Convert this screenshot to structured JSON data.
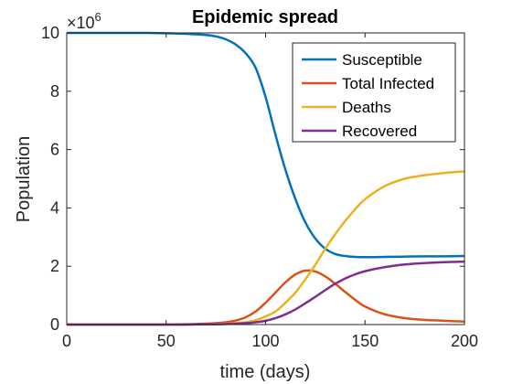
{
  "chart_data": {
    "type": "line",
    "title": "Epidemic spread",
    "xlabel": "time (days)",
    "ylabel": "Population",
    "xlim": [
      0,
      200
    ],
    "ylim": [
      0,
      10
    ],
    "xticks": [
      0,
      50,
      100,
      150,
      200
    ],
    "yticks": [
      0,
      2,
      4,
      6,
      8,
      10
    ],
    "y_exponent_label": "×10",
    "y_exponent_power": "6",
    "grid": false,
    "legend_position": "top-right",
    "x": [
      0,
      10,
      20,
      30,
      40,
      50,
      60,
      70,
      75,
      80,
      85,
      90,
      95,
      100,
      105,
      110,
      115,
      120,
      125,
      130,
      135,
      140,
      145,
      150,
      160,
      170,
      180,
      190,
      200
    ],
    "series": [
      {
        "name": "Susceptible",
        "color": "#0072BD",
        "values": [
          10.0,
          10.0,
          10.0,
          10.0,
          10.0,
          9.99,
          9.97,
          9.93,
          9.88,
          9.78,
          9.6,
          9.3,
          8.8,
          7.8,
          6.5,
          5.3,
          4.3,
          3.5,
          2.95,
          2.6,
          2.42,
          2.35,
          2.32,
          2.31,
          2.32,
          2.33,
          2.34,
          2.34,
          2.35
        ]
      },
      {
        "name": "Total Infected",
        "color": "#D95319",
        "values": [
          0,
          0,
          0,
          0,
          0,
          0,
          0.01,
          0.03,
          0.05,
          0.08,
          0.14,
          0.25,
          0.45,
          0.75,
          1.1,
          1.45,
          1.72,
          1.85,
          1.82,
          1.65,
          1.4,
          1.12,
          0.85,
          0.62,
          0.35,
          0.22,
          0.16,
          0.13,
          0.1
        ]
      },
      {
        "name": "Deaths",
        "color": "#EDB120",
        "values": [
          0,
          0,
          0,
          0,
          0,
          0,
          0,
          0.01,
          0.02,
          0.03,
          0.05,
          0.08,
          0.15,
          0.28,
          0.45,
          0.75,
          1.1,
          1.55,
          2.05,
          2.6,
          3.1,
          3.55,
          3.95,
          4.3,
          4.75,
          5.0,
          5.12,
          5.2,
          5.25
        ]
      },
      {
        "name": "Recovered",
        "color": "#7E2F8E",
        "values": [
          0,
          0,
          0,
          0,
          0,
          0,
          0,
          0.01,
          0.01,
          0.02,
          0.03,
          0.05,
          0.08,
          0.13,
          0.22,
          0.35,
          0.52,
          0.73,
          0.95,
          1.18,
          1.4,
          1.58,
          1.72,
          1.83,
          1.97,
          2.06,
          2.11,
          2.14,
          2.16
        ]
      }
    ]
  }
}
